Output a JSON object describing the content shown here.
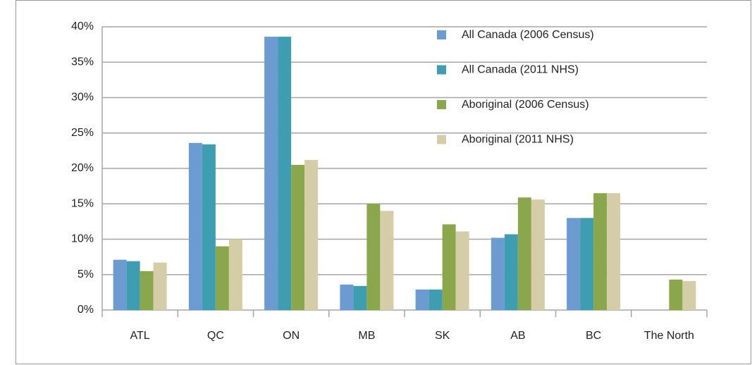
{
  "chart_data": {
    "type": "bar",
    "categories": [
      "ATL",
      "QC",
      "ON",
      "MB",
      "SK",
      "AB",
      "BC",
      "The North"
    ],
    "series": [
      {
        "name": "All Canada (2006 Census)",
        "color": "#6b9bd1",
        "values": [
          7.1,
          23.6,
          38.6,
          3.6,
          2.9,
          10.2,
          13.0,
          0
        ]
      },
      {
        "name": "All Canada (2011 NHS)",
        "color": "#3f9db2",
        "values": [
          6.9,
          23.4,
          38.6,
          3.4,
          2.9,
          10.7,
          13.0,
          0
        ]
      },
      {
        "name": "Aboriginal (2006 Census)",
        "color": "#8aa84b",
        "values": [
          5.5,
          9.0,
          20.5,
          15.0,
          12.1,
          15.9,
          16.5,
          4.3
        ]
      },
      {
        "name": "Aboriginal (2011 NHS)",
        "color": "#d5cca8",
        "values": [
          6.7,
          10.0,
          21.2,
          14.0,
          11.1,
          15.6,
          16.5,
          4.1
        ]
      }
    ],
    "ylim": [
      0,
      40
    ],
    "yticks": [
      {
        "value": 0,
        "label": "0%"
      },
      {
        "value": 5,
        "label": "5%"
      },
      {
        "value": 10,
        "label": "10%"
      },
      {
        "value": 15,
        "label": "15%"
      },
      {
        "value": 20,
        "label": "20%"
      },
      {
        "value": 25,
        "label": "25%"
      },
      {
        "value": 30,
        "label": "30%"
      },
      {
        "value": 35,
        "label": "35%"
      },
      {
        "value": 40,
        "label": "40%"
      }
    ],
    "grid": true
  }
}
